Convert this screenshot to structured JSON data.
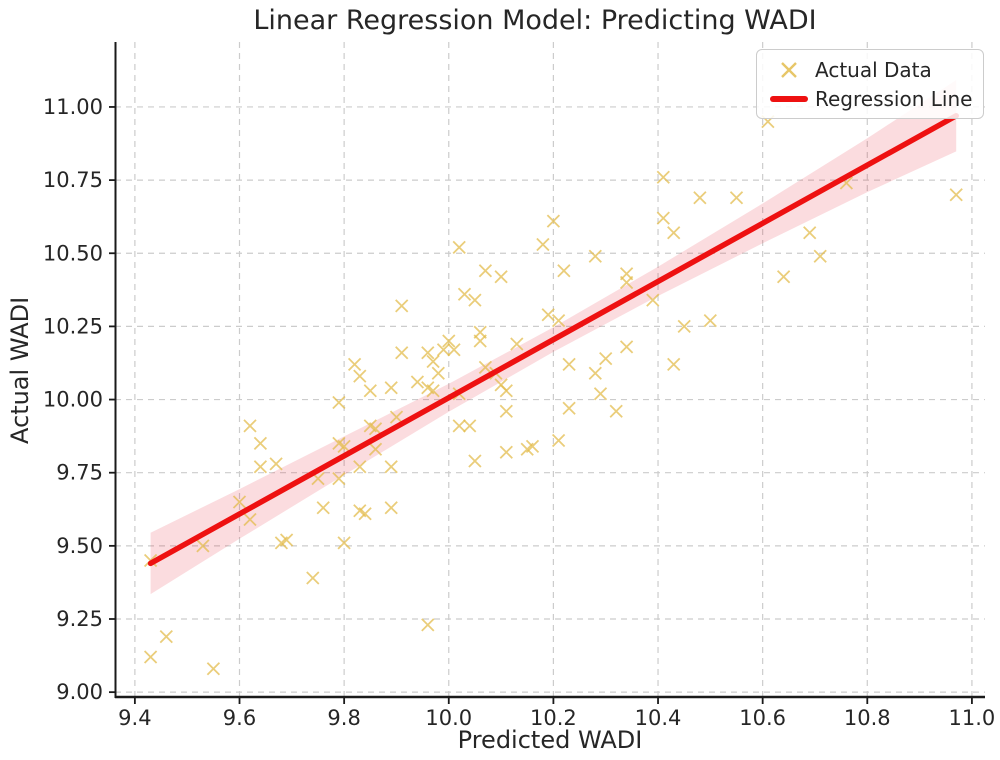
{
  "chart_data": {
    "type": "scatter",
    "title": "Linear Regression Model: Predicting WADI",
    "xlabel": "Predicted WADI",
    "ylabel": "Actual WADI",
    "xlim": [
      9.362,
      11.025
    ],
    "ylim": [
      8.98,
      11.222
    ],
    "x_ticks": [
      9.4,
      9.6,
      9.8,
      10.0,
      10.2,
      10.4,
      10.6,
      10.8,
      11.0
    ],
    "x_tick_labels": [
      "9.4",
      "9.6",
      "9.8",
      "10.0",
      "10.2",
      "10.4",
      "10.6",
      "10.8",
      "11.0"
    ],
    "y_ticks": [
      9.0,
      9.25,
      9.5,
      9.75,
      10.0,
      10.25,
      10.5,
      10.75,
      11.0
    ],
    "y_tick_labels": [
      "9.00",
      "9.25",
      "9.50",
      "9.75",
      "10.00",
      "10.25",
      "10.50",
      "10.75",
      "11.00"
    ],
    "grid": true,
    "legend_position": "upper right",
    "legend_actual": "Actual Data",
    "legend_regression": "Regression Line",
    "colors": {
      "marker": "#E3BC4E",
      "line": "#EE1111",
      "band": "rgba(229,35,55,0.16)",
      "grid": "#cccccc",
      "spine": "#1a1a1a",
      "text": "#262626"
    },
    "points": [
      [
        9.43,
        9.45
      ],
      [
        9.53,
        9.5
      ],
      [
        9.6,
        9.65
      ],
      [
        9.62,
        9.59
      ],
      [
        9.62,
        9.91
      ],
      [
        9.64,
        9.85
      ],
      [
        9.64,
        9.77
      ],
      [
        9.67,
        9.78
      ],
      [
        9.68,
        9.51
      ],
      [
        9.69,
        9.52
      ],
      [
        9.76,
        9.63
      ],
      [
        9.83,
        9.62
      ],
      [
        9.84,
        9.61
      ],
      [
        9.89,
        9.63
      ],
      [
        9.8,
        9.51
      ],
      [
        9.74,
        9.39
      ],
      [
        9.46,
        9.19
      ],
      [
        9.43,
        9.12
      ],
      [
        9.55,
        9.08
      ],
      [
        9.96,
        9.23
      ],
      [
        9.79,
        9.99
      ],
      [
        9.85,
        9.91
      ],
      [
        9.86,
        9.9
      ],
      [
        9.9,
        9.94
      ],
      [
        10.11,
        9.96
      ],
      [
        10.32,
        9.96
      ],
      [
        10.02,
        9.91
      ],
      [
        10.04,
        9.91
      ],
      [
        9.79,
        9.85
      ],
      [
        9.8,
        9.84
      ],
      [
        9.86,
        9.83
      ],
      [
        10.21,
        9.86
      ],
      [
        10.11,
        9.82
      ],
      [
        10.15,
        9.83
      ],
      [
        10.16,
        9.84
      ],
      [
        10.05,
        9.79
      ],
      [
        9.83,
        9.77
      ],
      [
        9.89,
        9.77
      ],
      [
        9.75,
        9.73
      ],
      [
        9.79,
        9.73
      ],
      [
        10.2,
        10.61
      ],
      [
        10.18,
        10.53
      ],
      [
        10.02,
        10.52
      ],
      [
        10.28,
        10.49
      ],
      [
        10.07,
        10.44
      ],
      [
        10.1,
        10.42
      ],
      [
        10.22,
        10.44
      ],
      [
        10.03,
        10.36
      ],
      [
        10.05,
        10.34
      ],
      [
        9.91,
        10.32
      ],
      [
        10.19,
        10.29
      ],
      [
        10.21,
        10.27
      ],
      [
        10.06,
        10.23
      ],
      [
        10.06,
        10.2
      ],
      [
        10.0,
        10.2
      ],
      [
        10.01,
        10.17
      ],
      [
        10.13,
        10.19
      ],
      [
        9.91,
        10.16
      ],
      [
        9.96,
        10.16
      ],
      [
        9.99,
        10.17
      ],
      [
        9.97,
        10.13
      ],
      [
        9.98,
        10.09
      ],
      [
        9.82,
        10.12
      ],
      [
        9.83,
        10.08
      ],
      [
        10.3,
        10.14
      ],
      [
        10.28,
        10.09
      ],
      [
        10.23,
        10.12
      ],
      [
        10.07,
        10.11
      ],
      [
        10.09,
        10.09
      ],
      [
        10.1,
        10.05
      ],
      [
        10.11,
        10.03
      ],
      [
        9.85,
        10.03
      ],
      [
        9.89,
        10.04
      ],
      [
        9.94,
        10.06
      ],
      [
        9.96,
        10.04
      ],
      [
        9.97,
        10.03
      ],
      [
        10.02,
        10.02
      ],
      [
        10.23,
        9.97
      ],
      [
        10.29,
        10.02
      ],
      [
        10.61,
        10.95
      ],
      [
        10.41,
        10.76
      ],
      [
        10.48,
        10.69
      ],
      [
        10.55,
        10.69
      ],
      [
        10.76,
        10.74
      ],
      [
        10.41,
        10.62
      ],
      [
        10.43,
        10.57
      ],
      [
        10.69,
        10.57
      ],
      [
        10.71,
        10.49
      ],
      [
        10.34,
        10.43
      ],
      [
        10.34,
        10.4
      ],
      [
        10.64,
        10.42
      ],
      [
        10.39,
        10.34
      ],
      [
        10.45,
        10.25
      ],
      [
        10.5,
        10.27
      ],
      [
        10.97,
        10.7
      ],
      [
        10.34,
        10.18
      ],
      [
        10.43,
        10.12
      ]
    ],
    "regression_line": {
      "x1": 9.43,
      "y1": 9.44,
      "x2": 10.97,
      "y2": 10.97
    },
    "band": {
      "x": [
        9.43,
        9.6,
        9.8,
        10.0,
        10.2,
        10.4,
        10.6,
        10.8,
        10.97
      ],
      "upper": [
        9.545,
        9.694,
        9.874,
        10.054,
        10.247,
        10.454,
        10.67,
        10.893,
        11.092
      ],
      "lower": [
        9.335,
        9.524,
        9.742,
        9.958,
        10.163,
        10.354,
        10.534,
        10.709,
        10.848
      ]
    }
  }
}
